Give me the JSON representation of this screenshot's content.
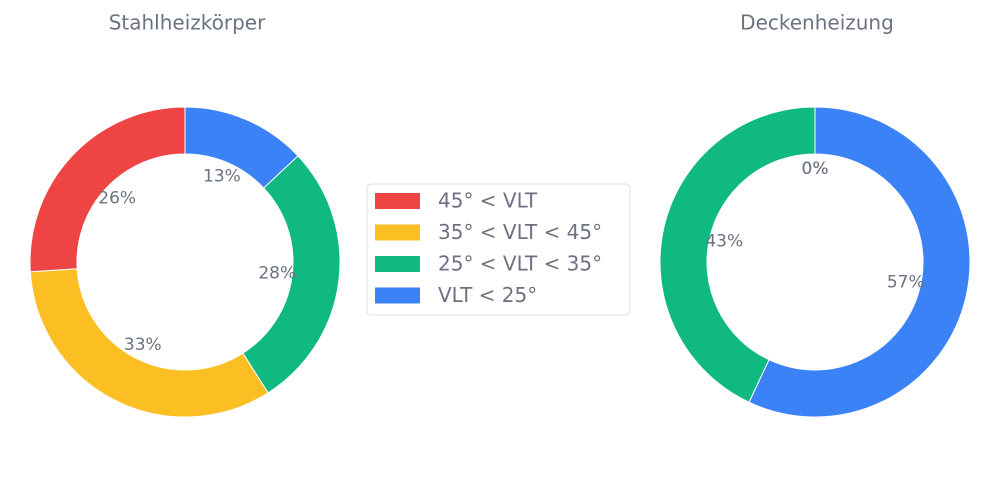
{
  "legend": {
    "entries": [
      {
        "name": "45° < VLT",
        "color": "#ef4444"
      },
      {
        "name": "35° < VLT < 45°",
        "color": "#fbbf24"
      },
      {
        "name": "25° < VLT < 35°",
        "color": "#10b981"
      },
      {
        "name": "VLT < 25°",
        "color": "#3b82f6"
      }
    ]
  },
  "chart_data": [
    {
      "type": "pie",
      "title": "Stahlheizkörper",
      "values": [
        26,
        33,
        28,
        13
      ],
      "value_labels": [
        "26%",
        "33%",
        "28%",
        "13%"
      ]
    },
    {
      "type": "pie",
      "title": "Deckenheizung",
      "values": [
        0,
        0,
        43,
        57
      ],
      "value_labels": [
        "0%",
        "0%",
        "43%",
        "57%"
      ]
    }
  ]
}
